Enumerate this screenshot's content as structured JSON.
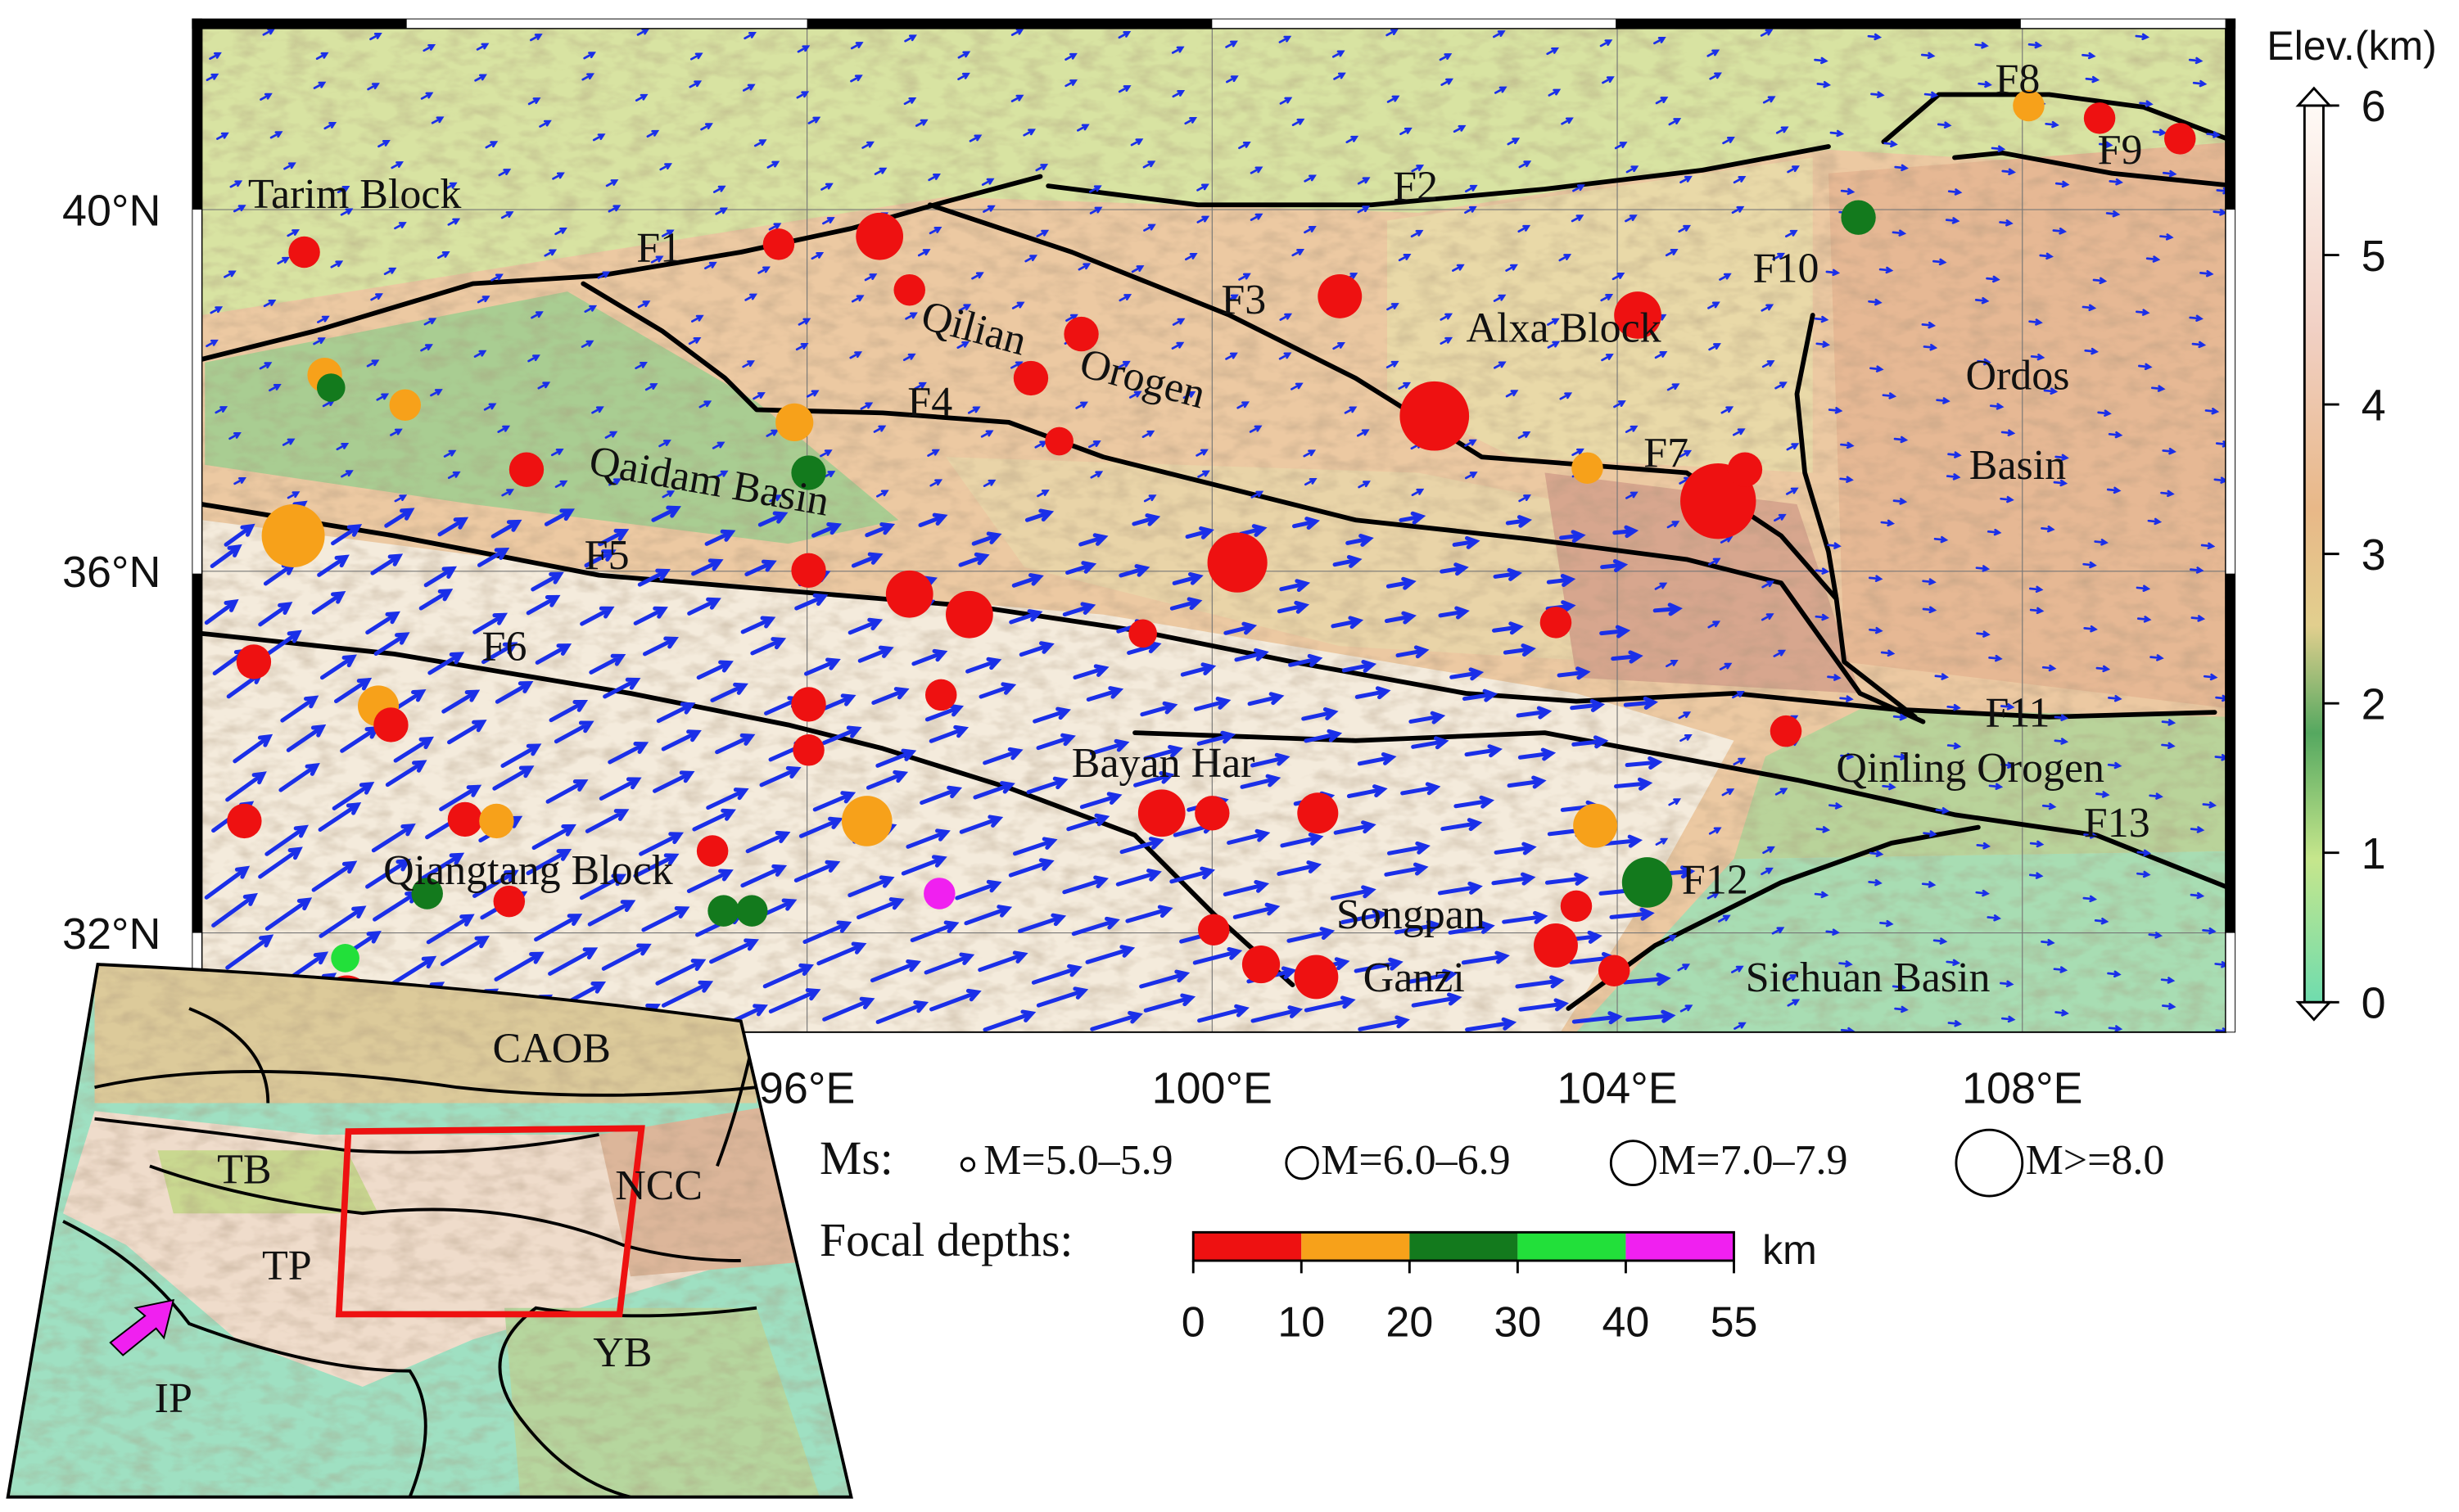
{
  "map": {
    "lat_ticks": [
      {
        "value": 40,
        "label": "40°N"
      },
      {
        "value": 36,
        "label": "36°N"
      },
      {
        "value": 32,
        "label": "32°N"
      }
    ],
    "lon_ticks": [
      {
        "value": 96,
        "label": "96°E"
      },
      {
        "value": 100,
        "label": "100°E"
      },
      {
        "value": 104,
        "label": "104°E"
      },
      {
        "value": 108,
        "label": "108°E"
      }
    ],
    "labels": [
      "Tarim Block",
      "F1",
      "F2",
      "F3",
      "Qilian",
      "Orogen",
      "Alxa Block",
      "F4",
      "Qaidam Basin",
      "F5",
      "F6",
      "F7",
      "F8",
      "F9",
      "F10",
      "Ordos",
      "Basin",
      "F11",
      "Qinling Orogen",
      "F13",
      "F12",
      "Bayan Har",
      "Qiangtang Block",
      "Songpan",
      "Ganzi",
      "Sichuan Basin"
    ]
  },
  "colorbar": {
    "title": "Elev.(km)",
    "ticks": [
      0,
      1,
      2,
      3,
      4,
      5,
      6
    ]
  },
  "legend": {
    "magnitude_title": "Ms:",
    "magnitude_classes": [
      "M=5.0–5.9",
      "M=6.0–6.9",
      "M=7.0–7.9",
      "M>=8.0"
    ],
    "depth_title": "Focal depths:",
    "depth_ticks": [
      0,
      10,
      20,
      30,
      40,
      55
    ],
    "depth_unit": "km",
    "depth_colors": [
      "#ee1111",
      "#f7a11a",
      "#137a1d",
      "#22e03a",
      "#f020f0"
    ]
  },
  "inset": {
    "labels": [
      "CAOB",
      "TB",
      "NCC",
      "TP",
      "YB",
      "IP"
    ]
  }
}
